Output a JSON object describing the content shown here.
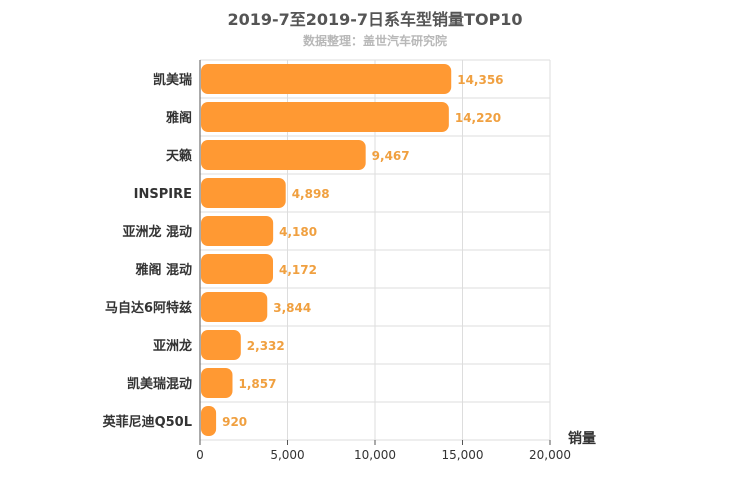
{
  "chart_data": {
    "type": "bar",
    "orientation": "horizontal",
    "title": "2019-7至2019-7日系车型销量TOP10",
    "subtitle": "数据整理：盖世汽车研究院",
    "xlabel": "销量",
    "ylabel": "",
    "categories": [
      "凯美瑞",
      "雅阁",
      "天籁",
      "INSPIRE",
      "亚洲龙 混动",
      "雅阁 混动",
      "马自达6阿特兹",
      "亚洲龙",
      "凯美瑞混动",
      "英菲尼迪Q50L"
    ],
    "values": [
      14356,
      14220,
      9467,
      4898,
      4180,
      4172,
      3844,
      2332,
      1857,
      920
    ],
    "value_labels": [
      "14,356",
      "14,220",
      "9,467",
      "4,898",
      "4,180",
      "4,172",
      "3,844",
      "2,332",
      "1,857",
      "920"
    ],
    "xlim": [
      0,
      20000
    ],
    "ticks": [
      0,
      5000,
      10000,
      15000,
      20000
    ],
    "tick_labels": [
      "0",
      "5,000",
      "10,000",
      "15,000",
      "20,000"
    ],
    "grid": true,
    "bar_color": "#ff9933"
  }
}
